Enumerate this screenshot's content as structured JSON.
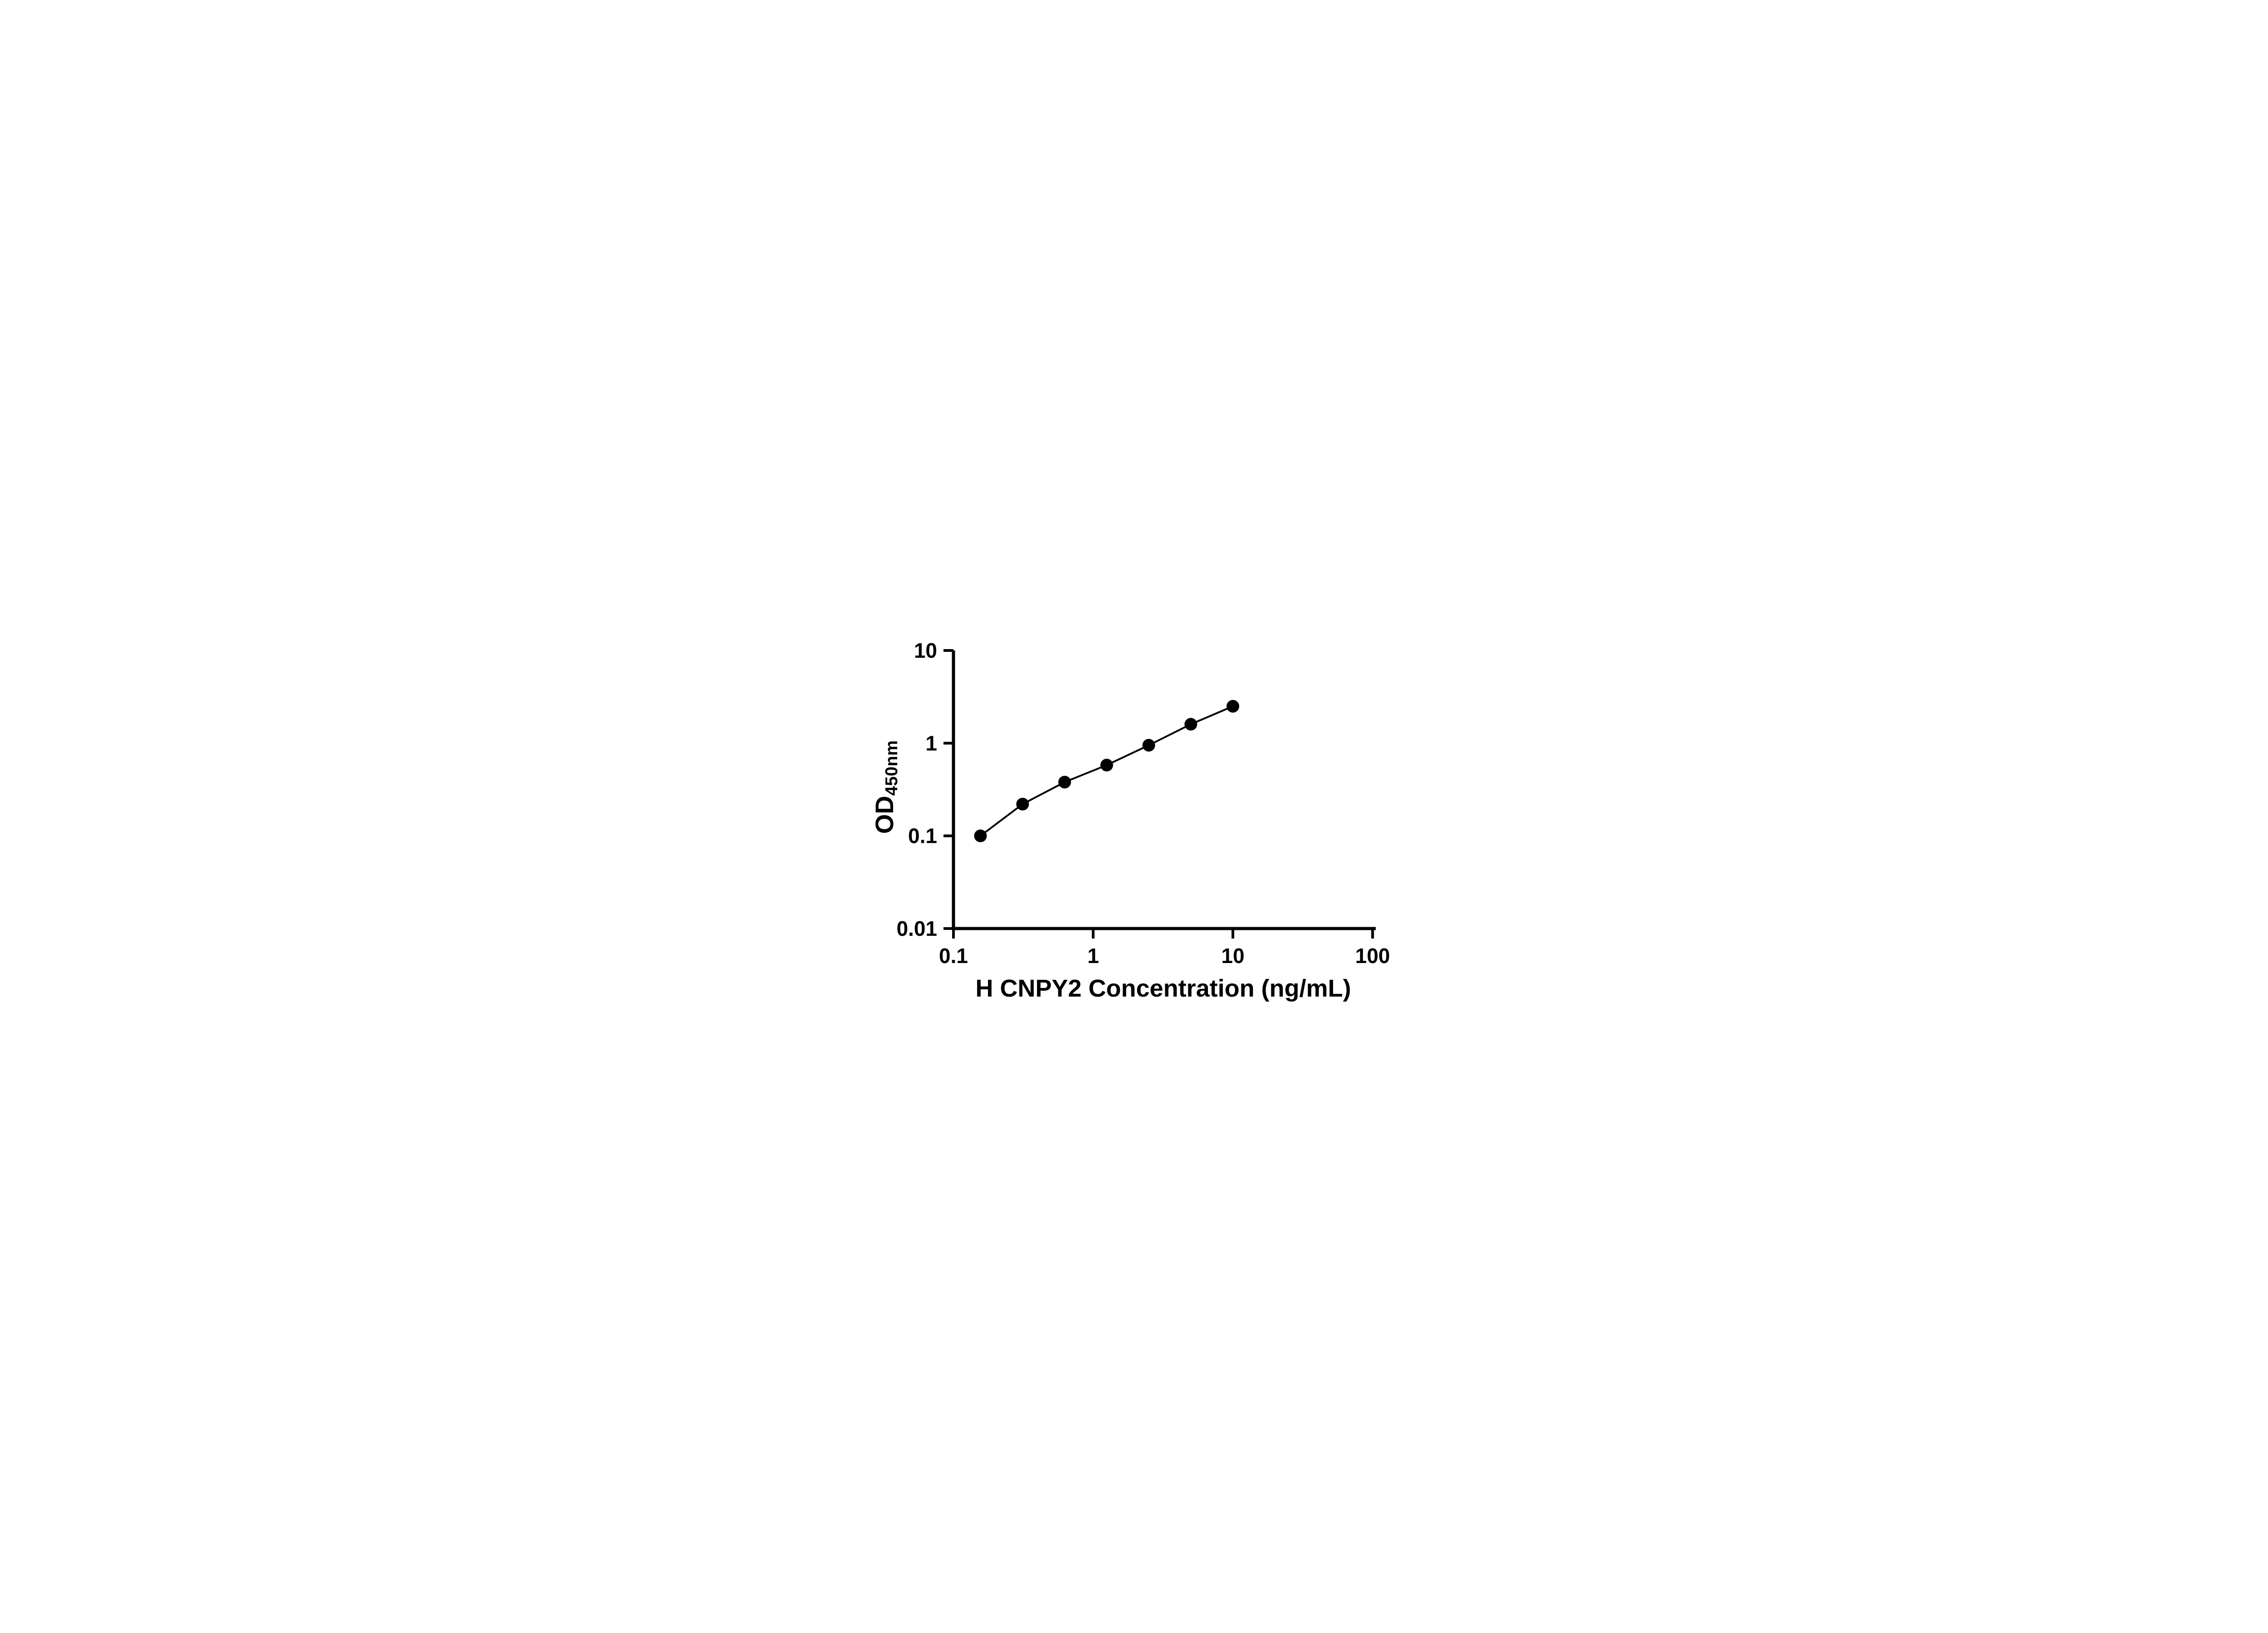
{
  "page": {
    "background": "#ffffff"
  },
  "chart_data": {
    "type": "scatter",
    "xlabel": "H CNPY2 Concentration (ng/mL)",
    "ylabel_main": "OD",
    "ylabel_sub": "450nm",
    "x_scale": "log",
    "y_scale": "log",
    "xlim": [
      0.1,
      100
    ],
    "ylim": [
      0.01,
      10
    ],
    "x_ticks": [
      0.1,
      1,
      10,
      100
    ],
    "x_tick_labels": [
      "0.1",
      "1",
      "10",
      "100"
    ],
    "y_ticks": [
      0.01,
      0.1,
      1,
      10
    ],
    "y_tick_labels": [
      "0.01",
      "0.1",
      "1",
      "10"
    ],
    "grid": false,
    "legend": false,
    "axis_color": "#000000",
    "line_color": "#000000",
    "marker_color": "#000000",
    "marker": "circle",
    "series": [
      {
        "x": [
          0.156,
          0.3125,
          0.625,
          1.25,
          2.5,
          5,
          10
        ],
        "y": [
          0.1,
          0.22,
          0.38,
          0.58,
          0.95,
          1.6,
          2.5
        ]
      }
    ]
  }
}
